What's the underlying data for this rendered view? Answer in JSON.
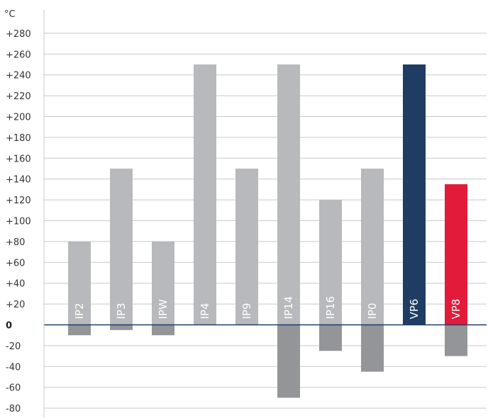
{
  "chart_data": {
    "type": "bar",
    "ylabel": "°C",
    "ylim": [
      -80,
      280
    ],
    "yticks": [
      280,
      260,
      240,
      220,
      200,
      180,
      160,
      140,
      120,
      100,
      80,
      60,
      40,
      20,
      0,
      -20,
      -40,
      -60,
      -80
    ],
    "ytick_labels": [
      "+280",
      "+260",
      "+240",
      "+220",
      "+200",
      "+180",
      "+160",
      "+140",
      "+120",
      "+100",
      "+80",
      "+60",
      "+40",
      "+20",
      "0",
      "-20",
      "-40",
      "-60",
      "-80"
    ],
    "grid": true,
    "categories": [
      "IP2",
      "IP3",
      "IPW",
      "IP4",
      "IP9",
      "IP14",
      "IP16",
      "IP0",
      "VP6",
      "VP8"
    ],
    "series": [
      {
        "values": [
          80,
          150,
          80,
          250,
          150,
          250,
          120,
          150,
          250,
          135
        ]
      },
      {
        "values": [
          -10,
          -5,
          -10,
          0,
          0,
          -70,
          -25,
          -45,
          0,
          -30
        ]
      }
    ],
    "colors": {
      "upper_default": "#b8b9bc",
      "lower_default": "#939598",
      "VP6": "#1f3d63",
      "VP8": "#e31b3b",
      "grid": "#c8c8c8",
      "axis": "#1f3d63"
    }
  }
}
